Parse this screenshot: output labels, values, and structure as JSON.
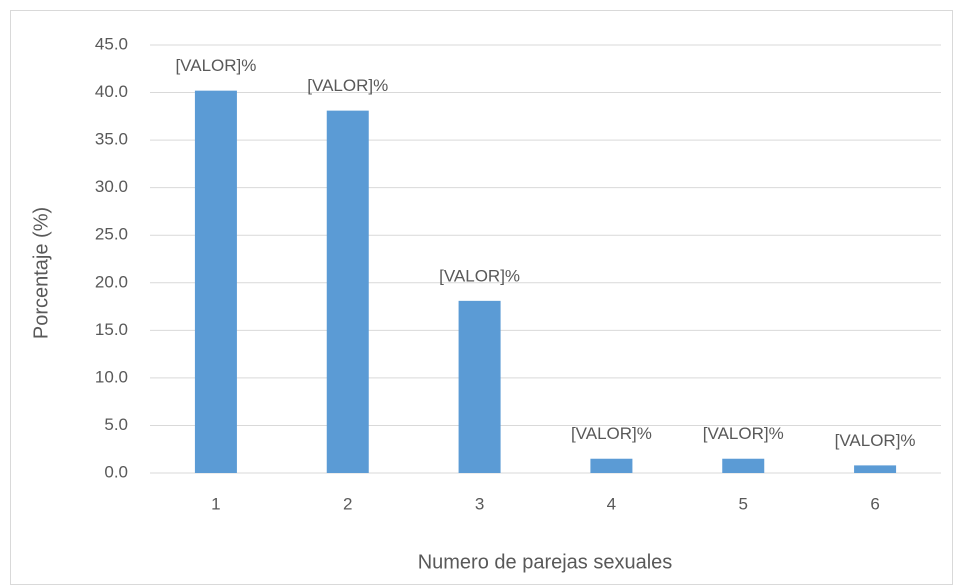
{
  "chart_data": {
    "type": "bar",
    "x_label": "Numero de parejas sexuales",
    "y_label": "Porcentaje (%)",
    "categories": [
      "1",
      "2",
      "3",
      "4",
      "5",
      "6"
    ],
    "values": [
      40.2,
      38.1,
      18.1,
      1.5,
      1.5,
      0.8
    ],
    "value_labels": [
      "[VALOR]%",
      "[VALOR]%",
      "[VALOR]%",
      "[VALOR]%",
      "[VALOR]%",
      "[VALOR]%"
    ],
    "color": "#5b9bd5",
    "ylim": [
      0,
      45
    ],
    "yticks": [
      {
        "value": 0,
        "label": "0.0"
      },
      {
        "value": 5,
        "label": "5.0"
      },
      {
        "value": 10,
        "label": "10.0"
      },
      {
        "value": 15,
        "label": "15.0"
      },
      {
        "value": 20,
        "label": "20.0"
      },
      {
        "value": 25,
        "label": "25.0"
      },
      {
        "value": 30,
        "label": "30.0"
      },
      {
        "value": 35,
        "label": "35.0"
      },
      {
        "value": 40,
        "label": "40.0"
      },
      {
        "value": 45,
        "label": "45.0"
      }
    ],
    "grid": true
  }
}
